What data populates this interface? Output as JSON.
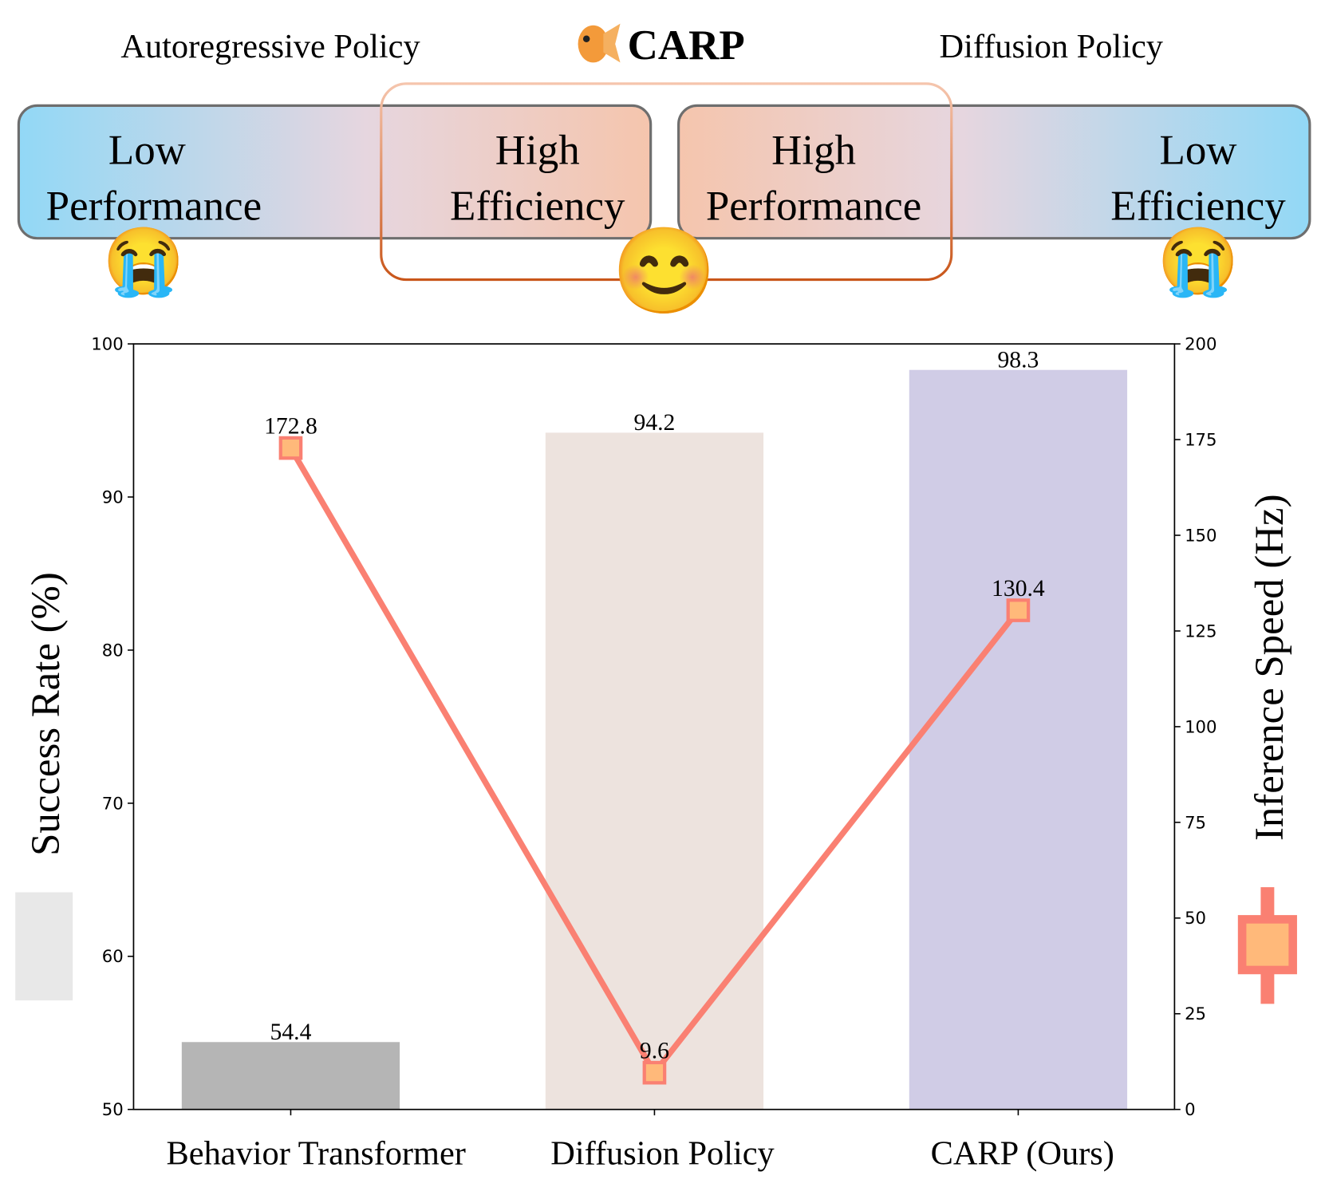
{
  "header": {
    "left_title": "Autoregressive Policy",
    "center_title": "CARP",
    "right_title": "Diffusion Policy",
    "center_icon": "goldfish-icon",
    "left_box": {
      "line1_left": "Low",
      "line2_left": "Performance",
      "line1_right": "High",
      "line2_right": "Efficiency"
    },
    "right_box": {
      "line1_left": "High",
      "line2_left": "Performance",
      "line1_right": "Low",
      "line2_right": "Efficiency"
    },
    "emoji_left": "😭",
    "emoji_center": "😊",
    "emoji_right": "😭"
  },
  "chart_data": {
    "type": "bar",
    "categories": [
      "Behavior Transformer",
      "Diffusion Policy",
      "CARP (Ours)"
    ],
    "bar_series": {
      "values": [
        54.4,
        94.2,
        98.3
      ],
      "value_labels": [
        "54.4",
        "94.2",
        "98.3"
      ],
      "colors": [
        "#b5b5b5",
        "#ede3de",
        "#d0cce6"
      ]
    },
    "line_series": {
      "type": "line",
      "values": [
        172.8,
        9.6,
        130.4
      ],
      "value_labels": [
        "172.8",
        "9.6",
        "130.4"
      ],
      "color": "#fa8072",
      "marker_fill": "#ffb97a",
      "marker": "square"
    },
    "ylabel": "Success Rate (%)",
    "y2label": "Inference Speed (Hz)",
    "ylim": [
      50,
      100
    ],
    "y2lim": [
      0,
      200
    ],
    "yticks": [
      50,
      60,
      70,
      80,
      90,
      100
    ],
    "y2ticks": [
      0,
      25,
      50,
      75,
      100,
      125,
      150,
      175,
      200
    ],
    "grid": false
  }
}
